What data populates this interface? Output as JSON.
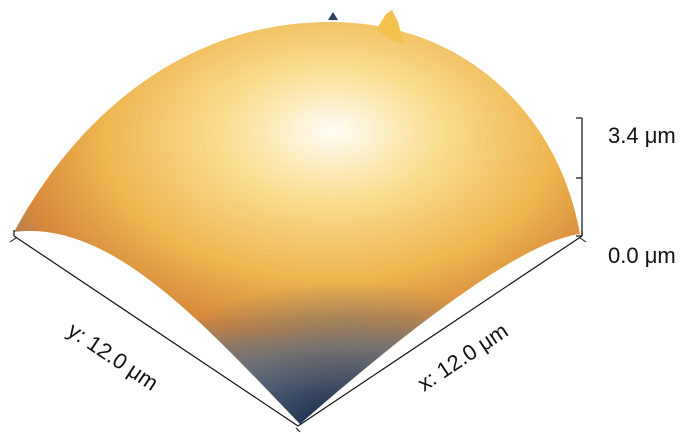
{
  "z_axis": {
    "max_label": "3.4 μm",
    "min_label": "0.0 μm"
  },
  "x_axis": {
    "label": "x: 12.0 μm"
  },
  "y_axis": {
    "label": "y: 12.0 μm"
  },
  "colors": {
    "peak": "#fff8e6",
    "high": "#f2c45a",
    "mid": "#d98a3a",
    "low_mid": "#5b7d9a",
    "low": "#0c1636",
    "axis": "#111111"
  }
}
